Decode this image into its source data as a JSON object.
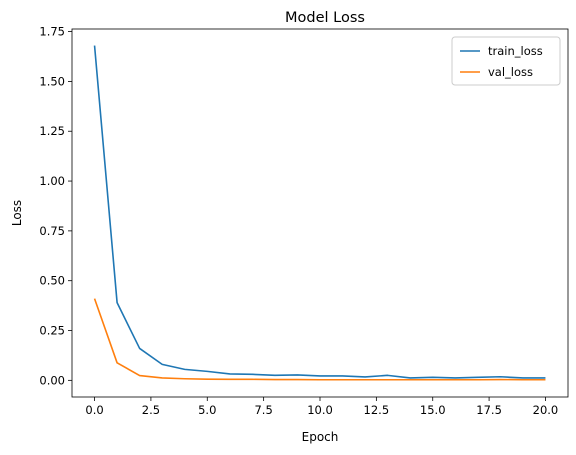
{
  "chart_data": {
    "type": "line",
    "title": "Model Loss",
    "xlabel": "Epoch",
    "ylabel": "Loss",
    "x": [
      0,
      1,
      2,
      3,
      4,
      5,
      6,
      7,
      8,
      9,
      10,
      11,
      12,
      13,
      14,
      15,
      16,
      17,
      18,
      19,
      20
    ],
    "xlim": [
      -1,
      21
    ],
    "ylim": [
      -0.0836,
      1.763
    ],
    "xticks": [
      "0.0",
      "2.5",
      "5.0",
      "7.5",
      "10.0",
      "12.5",
      "15.0",
      "17.5",
      "20.0"
    ],
    "yticks": [
      "0.00",
      "0.25",
      "0.50",
      "0.75",
      "1.00",
      "1.25",
      "1.50",
      "1.75"
    ],
    "grid": false,
    "legend_position": "top-right",
    "series": [
      {
        "name": "train_loss",
        "color": "#1f77b4",
        "values": [
          1.68,
          0.39,
          0.16,
          0.08,
          0.055,
          0.045,
          0.032,
          0.03,
          0.025,
          0.027,
          0.022,
          0.022,
          0.017,
          0.025,
          0.012,
          0.015,
          0.012,
          0.015,
          0.018,
          0.012,
          0.012
        ]
      },
      {
        "name": "val_loss",
        "color": "#ff7f0e",
        "values": [
          0.41,
          0.088,
          0.024,
          0.012,
          0.008,
          0.006,
          0.005,
          0.005,
          0.004,
          0.004,
          0.003,
          0.003,
          0.003,
          0.003,
          0.003,
          0.003,
          0.003,
          0.003,
          0.004,
          0.003,
          0.003
        ]
      }
    ]
  }
}
